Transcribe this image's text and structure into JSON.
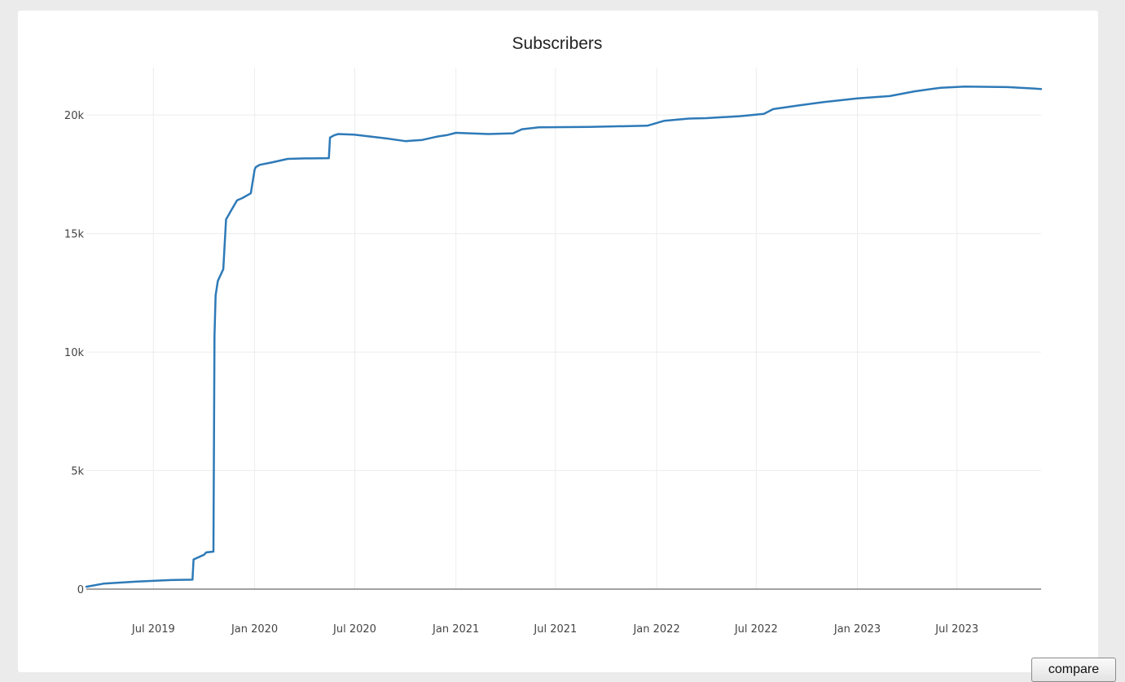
{
  "chart_data": {
    "type": "line",
    "title": "Subscribers",
    "xlabel": "",
    "ylabel": "",
    "x_range": [
      "2019-03-01",
      "2023-12-01"
    ],
    "ylim": [
      0,
      22000
    ],
    "y_ticks": [
      0,
      5000,
      10000,
      15000,
      20000
    ],
    "y_tick_labels": [
      "0",
      "5k",
      "10k",
      "15k",
      "20k"
    ],
    "x_ticks": [
      "2019-07-01",
      "2020-01-01",
      "2020-07-01",
      "2021-01-01",
      "2021-07-01",
      "2022-01-01",
      "2022-07-01",
      "2023-01-01",
      "2023-07-01"
    ],
    "x_tick_labels": [
      "Jul 2019",
      "Jan 2020",
      "Jul 2020",
      "Jan 2021",
      "Jul 2021",
      "Jan 2022",
      "Jul 2022",
      "Jan 2023",
      "Jul 2023"
    ],
    "grid": true,
    "line_color": "#2e7ab8",
    "series": [
      {
        "x": [
          "2019-03-01",
          "2019-04-01",
          "2019-06-01",
          "2019-08-01",
          "2019-09-10",
          "2019-09-12",
          "2019-10-01",
          "2019-10-05",
          "2019-10-18",
          "2019-10-20",
          "2019-10-22",
          "2019-10-26",
          "2019-11-05",
          "2019-11-10",
          "2019-11-15",
          "2019-11-20",
          "2019-11-30",
          "2019-12-10",
          "2019-12-25",
          "2020-01-01",
          "2020-01-03",
          "2020-01-10",
          "2020-02-01",
          "2020-03-01",
          "2020-04-01",
          "2020-05-15",
          "2020-05-17",
          "2020-05-25",
          "2020-06-01",
          "2020-06-30",
          "2020-09-01",
          "2020-10-01",
          "2020-11-01",
          "2020-11-20",
          "2020-11-30",
          "2020-12-15",
          "2021-01-01",
          "2021-03-01",
          "2021-04-15",
          "2021-05-01",
          "2021-06-01",
          "2021-09-01",
          "2021-12-15",
          "2022-01-15",
          "2022-03-01",
          "2022-04-01",
          "2022-06-01",
          "2022-07-15",
          "2022-08-01",
          "2022-09-15",
          "2022-11-01",
          "2023-01-01",
          "2023-03-01",
          "2023-04-15",
          "2023-06-01",
          "2023-07-15",
          "2023-10-01",
          "2023-12-01"
        ],
        "y": [
          100,
          230,
          320,
          380,
          400,
          1250,
          1450,
          1550,
          1580,
          10700,
          12400,
          13000,
          13500,
          15600,
          15800,
          16000,
          16400,
          16500,
          16700,
          17700,
          17800,
          17900,
          18000,
          18150,
          18170,
          18180,
          19050,
          19150,
          19200,
          19170,
          19000,
          18900,
          18950,
          19050,
          19100,
          19150,
          19250,
          19200,
          19230,
          19400,
          19480,
          19500,
          19550,
          19760,
          19850,
          19870,
          19950,
          20050,
          20250,
          20400,
          20550,
          20700,
          20800,
          21000,
          21150,
          21200,
          21180,
          21100
        ]
      }
    ]
  },
  "controls": {
    "compare_label": "compare"
  }
}
